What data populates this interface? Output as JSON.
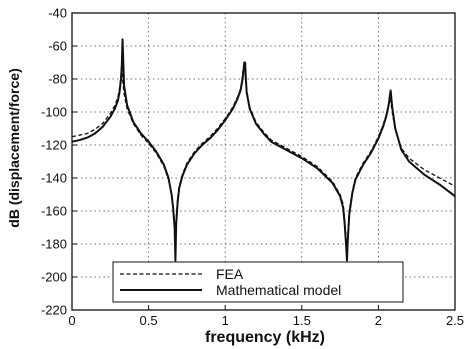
{
  "chart_data": {
    "type": "line",
    "xlabel": "frequency  (kHz)",
    "ylabel": "dB (displacement/force)",
    "xlim": [
      0,
      2.5
    ],
    "ylim": [
      -220,
      -40
    ],
    "xticks": [
      0,
      0.5,
      1,
      1.5,
      2,
      2.5
    ],
    "xtick_labels": [
      "0",
      "0.5",
      "1",
      "1.5",
      "2",
      "2.5"
    ],
    "yticks": [
      -220,
      -200,
      -180,
      -160,
      -140,
      -120,
      -100,
      -80,
      -60,
      -40
    ],
    "ytick_labels": [
      "-220",
      "-200",
      "-180",
      "-160",
      "-140",
      "-120",
      "-100",
      "-80",
      "-60",
      "-40"
    ],
    "grid": true,
    "legend_position": "bottom-left",
    "series": [
      {
        "name": "FEA",
        "style": "dashed",
        "color": "#111111",
        "x": [
          0,
          0.05,
          0.1,
          0.15,
          0.2,
          0.25,
          0.28,
          0.3,
          0.31,
          0.32,
          0.325,
          0.33,
          0.34,
          0.36,
          0.4,
          0.45,
          0.5,
          0.55,
          0.6,
          0.63,
          0.65,
          0.66,
          0.67,
          0.675,
          0.68,
          0.69,
          0.7,
          0.72,
          0.75,
          0.8,
          0.85,
          0.9,
          0.95,
          1.0,
          1.05,
          1.08,
          1.1,
          1.11,
          1.12,
          1.125,
          1.13,
          1.14,
          1.16,
          1.2,
          1.25,
          1.3,
          1.4,
          1.5,
          1.6,
          1.7,
          1.75,
          1.77,
          1.78,
          1.79,
          1.795,
          1.8,
          1.81,
          1.83,
          1.85,
          1.9,
          1.95,
          2.0,
          2.03,
          2.05,
          2.06,
          2.07,
          2.075,
          2.08,
          2.09,
          2.11,
          2.15,
          2.2,
          2.3,
          2.4,
          2.5
        ],
        "y": [
          -115,
          -114,
          -113,
          -110.5,
          -107,
          -101,
          -96,
          -91,
          -86,
          -78,
          -70,
          -80,
          -89,
          -98,
          -107,
          -114,
          -119,
          -125,
          -133,
          -141,
          -150,
          -157,
          -168,
          -185,
          -165,
          -152,
          -145,
          -138,
          -131,
          -124,
          -119,
          -115,
          -110,
          -104,
          -97,
          -91,
          -86,
          -80,
          -72,
          -71,
          -77,
          -87,
          -97,
          -106,
          -112,
          -117,
          -122,
          -127,
          -133,
          -142,
          -150,
          -156,
          -165,
          -178,
          -185,
          -175,
          -160,
          -148,
          -140,
          -131,
          -124,
          -115,
          -108,
          -102,
          -98,
          -95,
          -92,
          -93,
          -100,
          -111,
          -122,
          -128,
          -135,
          -140,
          -145
        ]
      },
      {
        "name": "Mathematical model",
        "style": "solid",
        "color": "#111111",
        "x": [
          0,
          0.05,
          0.1,
          0.15,
          0.2,
          0.25,
          0.28,
          0.3,
          0.31,
          0.32,
          0.325,
          0.33,
          0.335,
          0.34,
          0.36,
          0.4,
          0.45,
          0.5,
          0.55,
          0.6,
          0.63,
          0.65,
          0.66,
          0.67,
          0.675,
          0.68,
          0.69,
          0.7,
          0.72,
          0.75,
          0.8,
          0.85,
          0.9,
          0.95,
          1.0,
          1.05,
          1.08,
          1.1,
          1.11,
          1.12,
          1.125,
          1.13,
          1.135,
          1.14,
          1.16,
          1.2,
          1.25,
          1.3,
          1.4,
          1.5,
          1.6,
          1.7,
          1.75,
          1.77,
          1.78,
          1.79,
          1.795,
          1.8,
          1.81,
          1.83,
          1.85,
          1.9,
          1.95,
          2.0,
          2.03,
          2.05,
          2.06,
          2.07,
          2.075,
          2.08,
          2.085,
          2.09,
          2.11,
          2.15,
          2.2,
          2.3,
          2.4,
          2.5
        ],
        "y": [
          -118,
          -117,
          -115.5,
          -113,
          -109,
          -103,
          -98,
          -93,
          -88,
          -80,
          -72,
          -56,
          -70,
          -84,
          -96,
          -106,
          -113,
          -118,
          -124,
          -132,
          -140,
          -150,
          -158,
          -170,
          -190,
          -168,
          -154,
          -146,
          -139,
          -132,
          -125,
          -120,
          -116,
          -111,
          -105,
          -98,
          -92,
          -87,
          -82,
          -75,
          -70,
          -70,
          -80,
          -88,
          -98,
          -107,
          -113,
          -118,
          -123,
          -128,
          -134,
          -143,
          -151,
          -158,
          -168,
          -182,
          -190,
          -178,
          -162,
          -149,
          -141,
          -132,
          -125,
          -116,
          -109,
          -103,
          -99,
          -94,
          -90,
          -87,
          -92,
          -97,
          -110,
          -123,
          -130,
          -138,
          -144,
          -151
        ]
      }
    ]
  }
}
